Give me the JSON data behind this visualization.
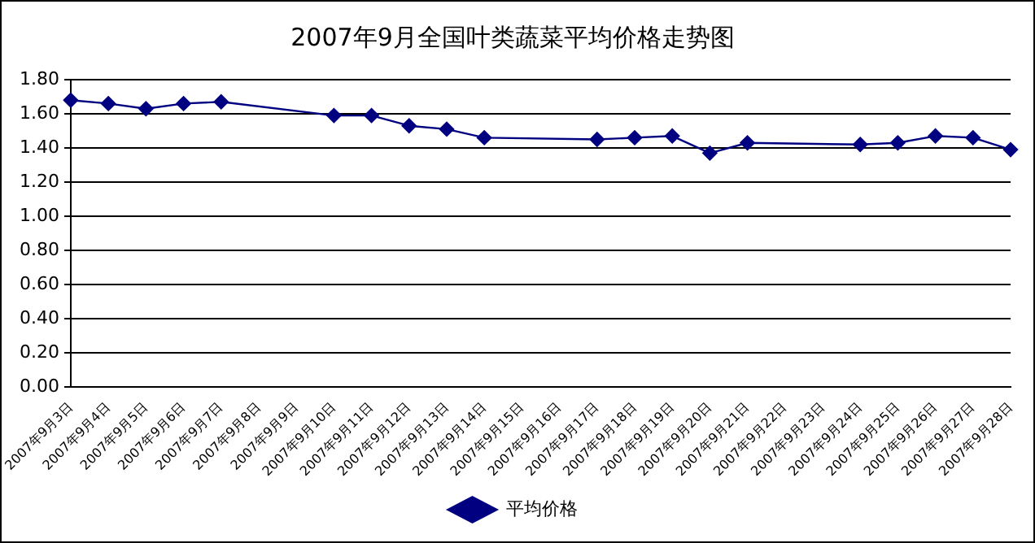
{
  "chart_data": {
    "type": "line",
    "title": "2007年9月全国叶类蔬菜平均价格走势图",
    "categories": [
      "2007年9月3日",
      "2007年9月4日",
      "2007年9月5日",
      "2007年9月6日",
      "2007年9月7日",
      "2007年9月8日",
      "2007年9月9日",
      "2007年9月10日",
      "2007年9月11日",
      "2007年9月12日",
      "2007年9月13日",
      "2007年9月14日",
      "2007年9月15日",
      "2007年9月16日",
      "2007年9月17日",
      "2007年9月18日",
      "2007年9月19日",
      "2007年9月20日",
      "2007年9月21日",
      "2007年9月22日",
      "2007年9月23日",
      "2007年9月24日",
      "2007年9月25日",
      "2007年9月26日",
      "2007年9月27日",
      "2007年9月28日"
    ],
    "series": [
      {
        "name": "平均价格",
        "color": "#000080",
        "values": [
          1.68,
          1.66,
          1.63,
          1.66,
          1.67,
          null,
          null,
          1.59,
          1.59,
          1.53,
          1.51,
          1.46,
          null,
          null,
          1.45,
          1.46,
          1.47,
          1.37,
          1.43,
          null,
          null,
          1.42,
          1.43,
          1.47,
          1.46,
          1.39
        ]
      }
    ],
    "ylim": [
      0,
      1.8
    ],
    "yticks": [
      {
        "value": 0,
        "label": "0.00"
      },
      {
        "value": 0.2,
        "label": "0.20"
      },
      {
        "value": 0.4,
        "label": "0.40"
      },
      {
        "value": 0.6,
        "label": "0.60"
      },
      {
        "value": 0.8,
        "label": "0.80"
      },
      {
        "value": 1,
        "label": "1.00"
      },
      {
        "value": 1.2,
        "label": "1.20"
      },
      {
        "value": 1.4,
        "label": "1.40"
      },
      {
        "value": 1.6,
        "label": "1.60"
      },
      {
        "value": 1.8,
        "label": "1.80"
      }
    ],
    "grid": "y",
    "legend": "bottom",
    "marker": "diamond",
    "line_style": "solid"
  }
}
